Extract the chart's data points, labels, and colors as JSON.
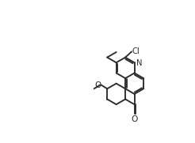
{
  "background": "#ffffff",
  "line_color": "#2a2a2a",
  "lw": 1.35,
  "figsize": [
    2.46,
    1.81
  ],
  "dpi": 100,
  "bl": 0.095,
  "quinoline_orientation_deg": 30,
  "labels": {
    "Cl": "Cl",
    "N": "N",
    "O": "O"
  },
  "label_fontsize": 7.2
}
